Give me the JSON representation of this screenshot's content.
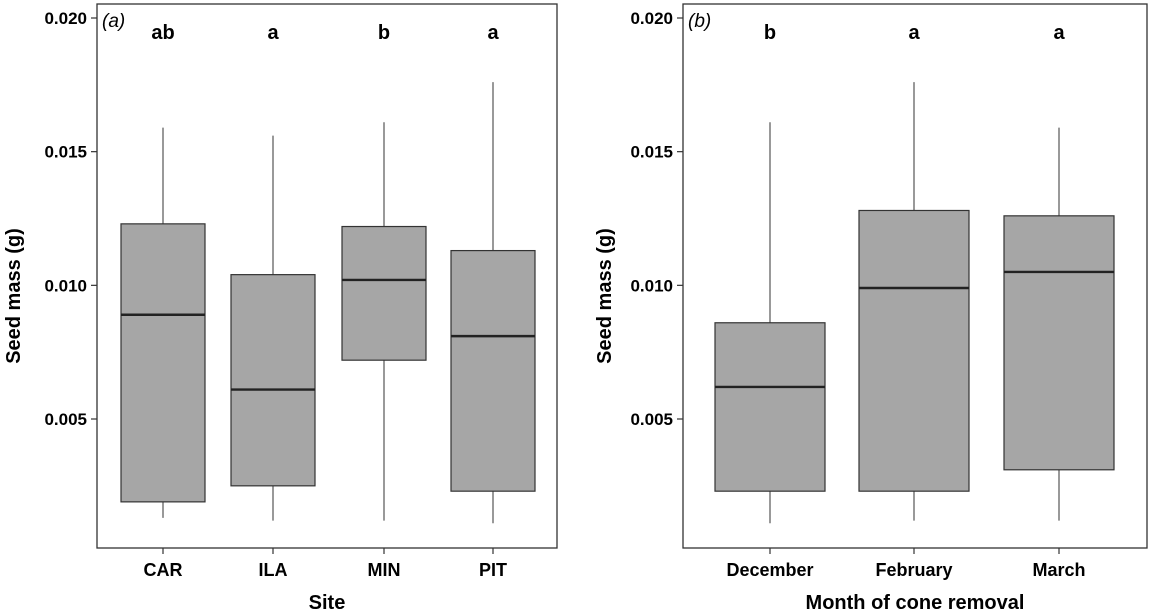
{
  "chart_data": [
    {
      "type": "boxplot",
      "panel_label": "(a)",
      "xlabel": "Site",
      "ylabel": "Seed mass (g)",
      "ylim": [
        0.0,
        0.02
      ],
      "yticks": [
        "0.005",
        "0.010",
        "0.015",
        "0.020"
      ],
      "ytick_values": [
        0.005,
        0.01,
        0.015,
        0.02
      ],
      "categories": [
        "CAR",
        "ILA",
        "MIN",
        "PIT"
      ],
      "significance_letters": [
        "ab",
        "a",
        "b",
        "a"
      ],
      "boxes": [
        {
          "min": 0.0013,
          "q1": 0.0019,
          "median": 0.0089,
          "q3": 0.0123,
          "max": 0.0159
        },
        {
          "min": 0.0012,
          "q1": 0.0025,
          "median": 0.0061,
          "q3": 0.0104,
          "max": 0.0156
        },
        {
          "min": 0.0012,
          "q1": 0.0072,
          "median": 0.0102,
          "q3": 0.0122,
          "max": 0.0161
        },
        {
          "min": 0.0011,
          "q1": 0.0023,
          "median": 0.0081,
          "q3": 0.0113,
          "max": 0.0176
        }
      ],
      "colors": {
        "box_fill": "#a6a6a6",
        "box_stroke": "#333333",
        "median_stroke": "#222222",
        "frame": "#333333"
      }
    },
    {
      "type": "boxplot",
      "panel_label": "(b)",
      "xlabel": "Month of cone removal",
      "ylabel": "Seed mass (g)",
      "ylim": [
        0.0,
        0.02
      ],
      "yticks": [
        "0.005",
        "0.010",
        "0.015",
        "0.020"
      ],
      "ytick_values": [
        0.005,
        0.01,
        0.015,
        0.02
      ],
      "categories": [
        "December",
        "February",
        "March"
      ],
      "significance_letters": [
        "b",
        "a",
        "a"
      ],
      "boxes": [
        {
          "min": 0.0011,
          "q1": 0.0023,
          "median": 0.0062,
          "q3": 0.0086,
          "max": 0.0161
        },
        {
          "min": 0.0012,
          "q1": 0.0023,
          "median": 0.0099,
          "q3": 0.0128,
          "max": 0.0176
        },
        {
          "min": 0.0012,
          "q1": 0.0031,
          "median": 0.0105,
          "q3": 0.0126,
          "max": 0.0159
        }
      ],
      "colors": {
        "box_fill": "#a6a6a6",
        "box_stroke": "#333333",
        "median_stroke": "#222222",
        "frame": "#333333"
      }
    }
  ]
}
